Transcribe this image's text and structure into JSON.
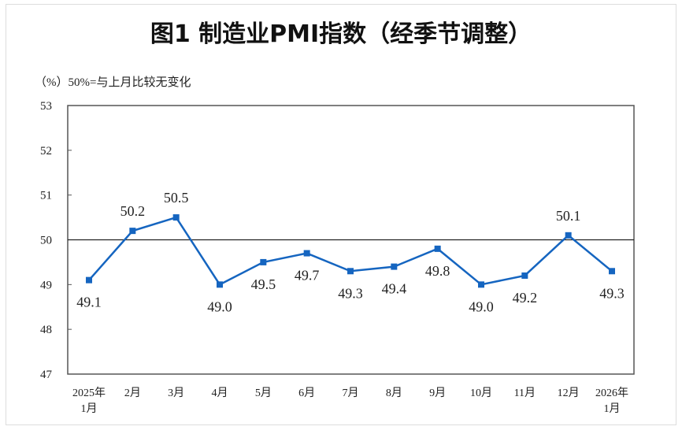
{
  "chart_data": {
    "type": "line",
    "title": "图1  制造业PMI指数（经季节调整）",
    "ylabel": "（%）50%=与上月比较无变化",
    "xlabel": "",
    "categories": [
      [
        "2025年",
        "1月"
      ],
      [
        "2月"
      ],
      [
        "3月"
      ],
      [
        "4月"
      ],
      [
        "5月"
      ],
      [
        "6月"
      ],
      [
        "7月"
      ],
      [
        "8月"
      ],
      [
        "9月"
      ],
      [
        "10月"
      ],
      [
        "11月"
      ],
      [
        "12月"
      ],
      [
        "2026年",
        "1月"
      ]
    ],
    "values": [
      49.1,
      50.2,
      50.5,
      49.0,
      49.5,
      49.7,
      49.3,
      49.4,
      49.8,
      49.0,
      49.2,
      50.1,
      49.3
    ],
    "data_labels": [
      "49.1",
      "50.2",
      "50.5",
      "49.0",
      "49.5",
      "49.7",
      "49.3",
      "49.4",
      "49.8",
      "49.0",
      "49.2",
      "50.1",
      "49.3"
    ],
    "ylim": [
      47,
      53
    ],
    "yticks": [
      47,
      48,
      49,
      50,
      51,
      52,
      53
    ],
    "reference_line": 50,
    "grid": false,
    "line_color": "#1565c0",
    "marker": "square"
  }
}
